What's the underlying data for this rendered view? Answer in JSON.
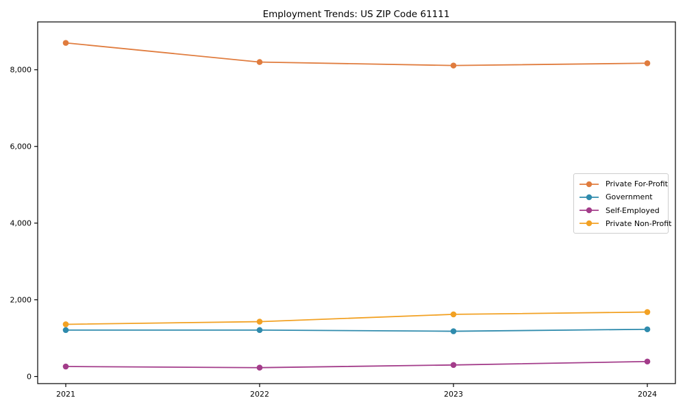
{
  "chart_data": {
    "type": "line",
    "title": "Employment Trends: US ZIP Code 61111",
    "xlabel": "",
    "ylabel": "",
    "categories": [
      "2021",
      "2022",
      "2023",
      "2024"
    ],
    "series": [
      {
        "name": "Private For-Profit",
        "color": "#e07c3e",
        "values": [
          8700,
          8200,
          8110,
          8170
        ]
      },
      {
        "name": "Government",
        "color": "#2f8bad",
        "values": [
          1210,
          1210,
          1180,
          1230
        ]
      },
      {
        "name": "Self-Employed",
        "color": "#a33c8a",
        "values": [
          260,
          230,
          300,
          390
        ]
      },
      {
        "name": "Private Non-Profit",
        "color": "#f2a123",
        "values": [
          1360,
          1430,
          1620,
          1680
        ]
      }
    ],
    "yticks": [
      0,
      2000,
      4000,
      6000,
      8000
    ],
    "ytick_labels": [
      "0",
      "2,000",
      "4,000",
      "6,000",
      "8,000"
    ],
    "ylim": [
      -186,
      9247
    ],
    "grid": false,
    "legend_position": "center right",
    "marker": "circle",
    "axis_color": "#000000",
    "text_color": "#000000",
    "background_color": "#ffffff"
  }
}
